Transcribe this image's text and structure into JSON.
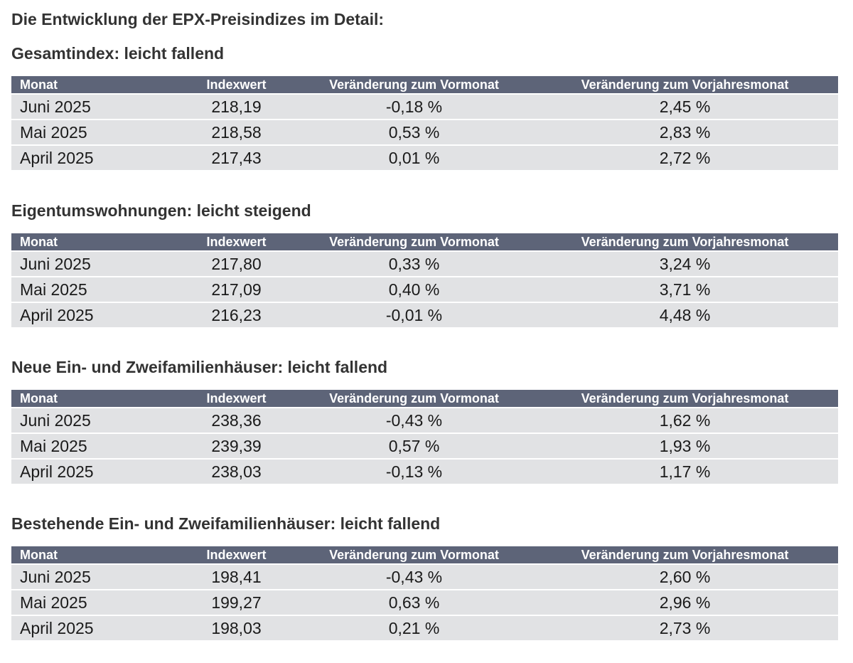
{
  "title": "Die Entwicklung der EPX-Preisindizes im Detail:",
  "columns": {
    "monat": "Monat",
    "indexwert": "Indexwert",
    "vormonat": "Veränderung zum Vormonat",
    "vorjahresmonat": "Veränderung zum Vorjahresmonat"
  },
  "sections": [
    {
      "heading": "Gesamtindex: leicht fallend",
      "rows": [
        {
          "monat": "Juni 2025",
          "indexwert": "218,19",
          "vormonat": "-0,18 %",
          "vorjahresmonat": "2,45 %"
        },
        {
          "monat": "Mai 2025",
          "indexwert": "218,58",
          "vormonat": "0,53 %",
          "vorjahresmonat": "2,83 %"
        },
        {
          "monat": "April 2025",
          "indexwert": "217,43",
          "vormonat": "0,01 %",
          "vorjahresmonat": "2,72 %"
        }
      ]
    },
    {
      "heading": "Eigentumswohnungen: leicht steigend",
      "rows": [
        {
          "monat": "Juni 2025",
          "indexwert": "217,80",
          "vormonat": "0,33 %",
          "vorjahresmonat": "3,24 %"
        },
        {
          "monat": "Mai 2025",
          "indexwert": "217,09",
          "vormonat": "0,40 %",
          "vorjahresmonat": "3,71 %"
        },
        {
          "monat": "April 2025",
          "indexwert": "216,23",
          "vormonat": "-0,01 %",
          "vorjahresmonat": "4,48 %"
        }
      ]
    },
    {
      "heading": "Neue Ein- und Zweifamilienhäuser: leicht fallend",
      "rows": [
        {
          "monat": "Juni 2025",
          "indexwert": "238,36",
          "vormonat": "-0,43 %",
          "vorjahresmonat": "1,62 %"
        },
        {
          "monat": "Mai 2025",
          "indexwert": "239,39",
          "vormonat": "0,57 %",
          "vorjahresmonat": "1,93 %"
        },
        {
          "monat": "April 2025",
          "indexwert": "238,03",
          "vormonat": "-0,13 %",
          "vorjahresmonat": "1,17 %"
        }
      ]
    },
    {
      "heading": "Bestehende Ein- und Zweifamilienhäuser: leicht fallend",
      "rows": [
        {
          "monat": "Juni 2025",
          "indexwert": "198,41",
          "vormonat": "-0,43 %",
          "vorjahresmonat": "2,60 %"
        },
        {
          "monat": "Mai 2025",
          "indexwert": "199,27",
          "vormonat": "0,63 %",
          "vorjahresmonat": "2,96 %"
        },
        {
          "monat": "April 2025",
          "indexwert": "198,03",
          "vormonat": "0,21 %",
          "vorjahresmonat": "2,73 %"
        }
      ]
    }
  ]
}
